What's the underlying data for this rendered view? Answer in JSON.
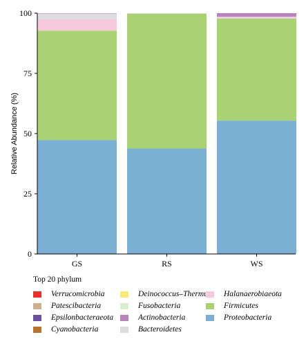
{
  "chart_data": {
    "type": "bar",
    "stacked": true,
    "categories": [
      "GS",
      "RS",
      "WS"
    ],
    "ylabel": "Relative Abundance (%)",
    "xlabel": "",
    "ylim": [
      0,
      100
    ],
    "yticks": [
      0,
      25,
      50,
      75,
      100
    ],
    "series": [
      {
        "name": "Proteobacteria",
        "color": "#7bafd4",
        "values": [
          47.3,
          43.8,
          55.4
        ]
      },
      {
        "name": "Firmicutes",
        "color": "#a9d373",
        "values": [
          45.4,
          56.0,
          42.3
        ]
      },
      {
        "name": "Halanaerobiaeota",
        "color": "#f6c9dc",
        "values": [
          4.8,
          0.0,
          0.5
        ]
      },
      {
        "name": "Bacteroidetes",
        "color": "#dddddd",
        "values": [
          2.2,
          0.2,
          0.3
        ]
      },
      {
        "name": "Actinobacteria",
        "color": "#b784bd",
        "values": [
          0.2,
          0.0,
          1.5
        ]
      },
      {
        "name": "Fusobacteria",
        "color": "#d9efcf",
        "values": [
          0.0,
          0.0,
          0.0
        ]
      },
      {
        "name": "Deinococcus–Thermus",
        "color": "#fbe97a",
        "values": [
          0.0,
          0.0,
          0.0
        ]
      },
      {
        "name": "Verrucomicrobia",
        "color": "#e8312a",
        "values": [
          0.0,
          0.0,
          0.0
        ]
      },
      {
        "name": "Patescibacteria",
        "color": "#cdb08e",
        "values": [
          0.0,
          0.0,
          0.0
        ]
      },
      {
        "name": "Epsilonbacteraeota",
        "color": "#6a4fa2",
        "values": [
          0.0,
          0.0,
          0.0
        ]
      },
      {
        "name": "Cyanobacteria",
        "color": "#b8732e",
        "values": [
          0.0,
          0.0,
          0.0
        ]
      }
    ],
    "legend": {
      "title": "Top 20 phylum",
      "placement": "bottom",
      "columns": [
        [
          "Verrucomicrobia",
          "Patescibacteria",
          "Epsilonbacteraeota",
          "Cyanobacteria"
        ],
        [
          "Deinococcus–Thermus",
          "Fusobacteria",
          "Actinobacteria",
          "Bacteroidetes"
        ],
        [
          "Halanaerobiaeota",
          "Firmicutes",
          "Proteobacteria"
        ]
      ]
    }
  }
}
